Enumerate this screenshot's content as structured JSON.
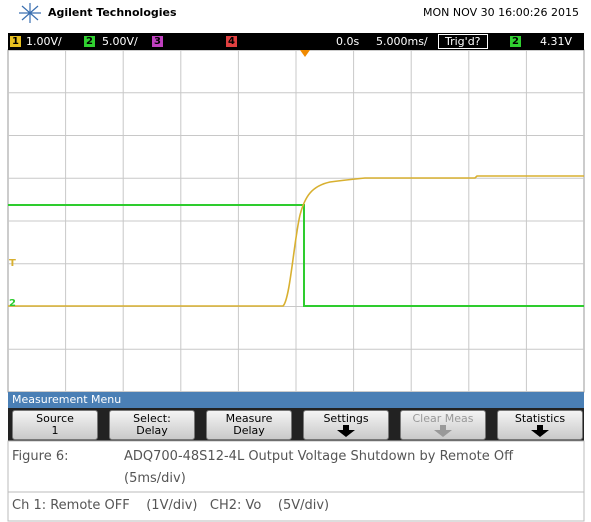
{
  "header": {
    "brand": "Agilent Technologies",
    "datetime": "MON NOV 30 16:00:26 2015"
  },
  "status": {
    "ch1": "1",
    "ch1_scale": "1.00V/",
    "ch2": "2",
    "ch2_scale": "5.00V/",
    "ch3": "3",
    "ch4": "4",
    "delay": "0.0s",
    "timebase": "5.000ms/",
    "trigger": "Trig'd?",
    "trig_ch": "2",
    "trig_level": "4.31V"
  },
  "markers": {
    "trigger": "T",
    "ch2": "2"
  },
  "menu": {
    "title": "Measurement Menu",
    "softkeys": [
      {
        "label": "Source",
        "value": "1"
      },
      {
        "label": "Select:",
        "value": "Delay"
      },
      {
        "label": "Measure",
        "value": "Delay"
      },
      {
        "label": "Settings"
      },
      {
        "label": "Clear Meas"
      },
      {
        "label": "Statistics"
      }
    ]
  },
  "caption": {
    "figure": "Figure 6:",
    "title": "ADQ700-48S12-4L Output Voltage Shutdown by Remote Off",
    "subtitle": "(5ms/div)",
    "channels": "Ch 1: Remote OFF    (1V/div)   CH2: Vo    (5V/div)"
  }
}
